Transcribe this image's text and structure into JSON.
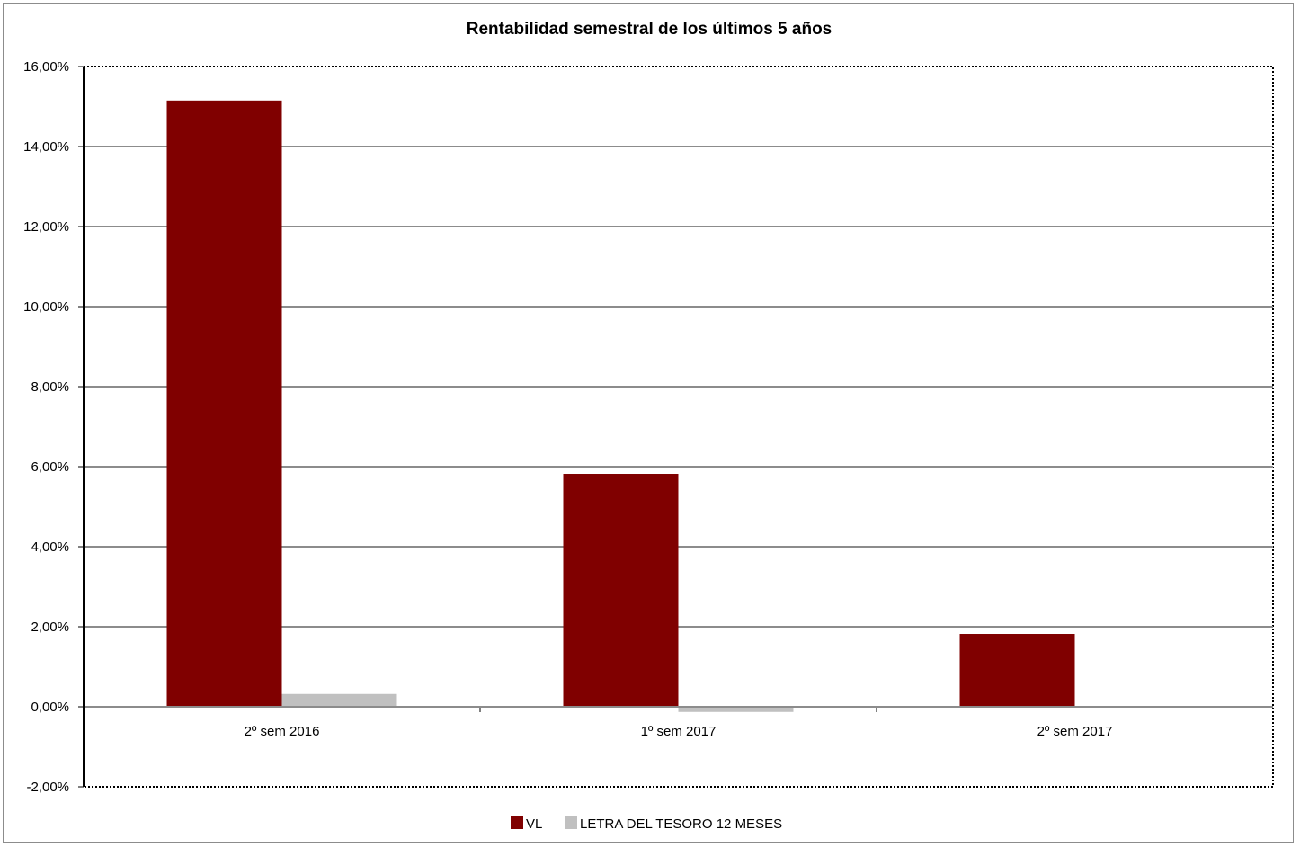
{
  "chart_data": {
    "type": "bar",
    "title": "Rentabilidad semestral de los últimos 5 años",
    "categories": [
      "2º sem 2016",
      "1º sem 2017",
      "2º sem 2017"
    ],
    "series": [
      {
        "name": "VL",
        "values": [
          15.15,
          5.82,
          1.82
        ],
        "color": "#800000"
      },
      {
        "name": "LETRA DEL TESORO 12 MESES",
        "values": [
          0.32,
          -0.13,
          0.0
        ],
        "color": "#c0c0c0"
      }
    ],
    "ylim": [
      -2,
      16
    ],
    "ytick_step": 2,
    "ytick_labels": [
      "-2,00%",
      "0,00%",
      "2,00%",
      "4,00%",
      "6,00%",
      "8,00%",
      "10,00%",
      "12,00%",
      "14,00%",
      "16,00%"
    ],
    "grid": true,
    "legend_position": "bottom",
    "xlabel": "",
    "ylabel": ""
  }
}
